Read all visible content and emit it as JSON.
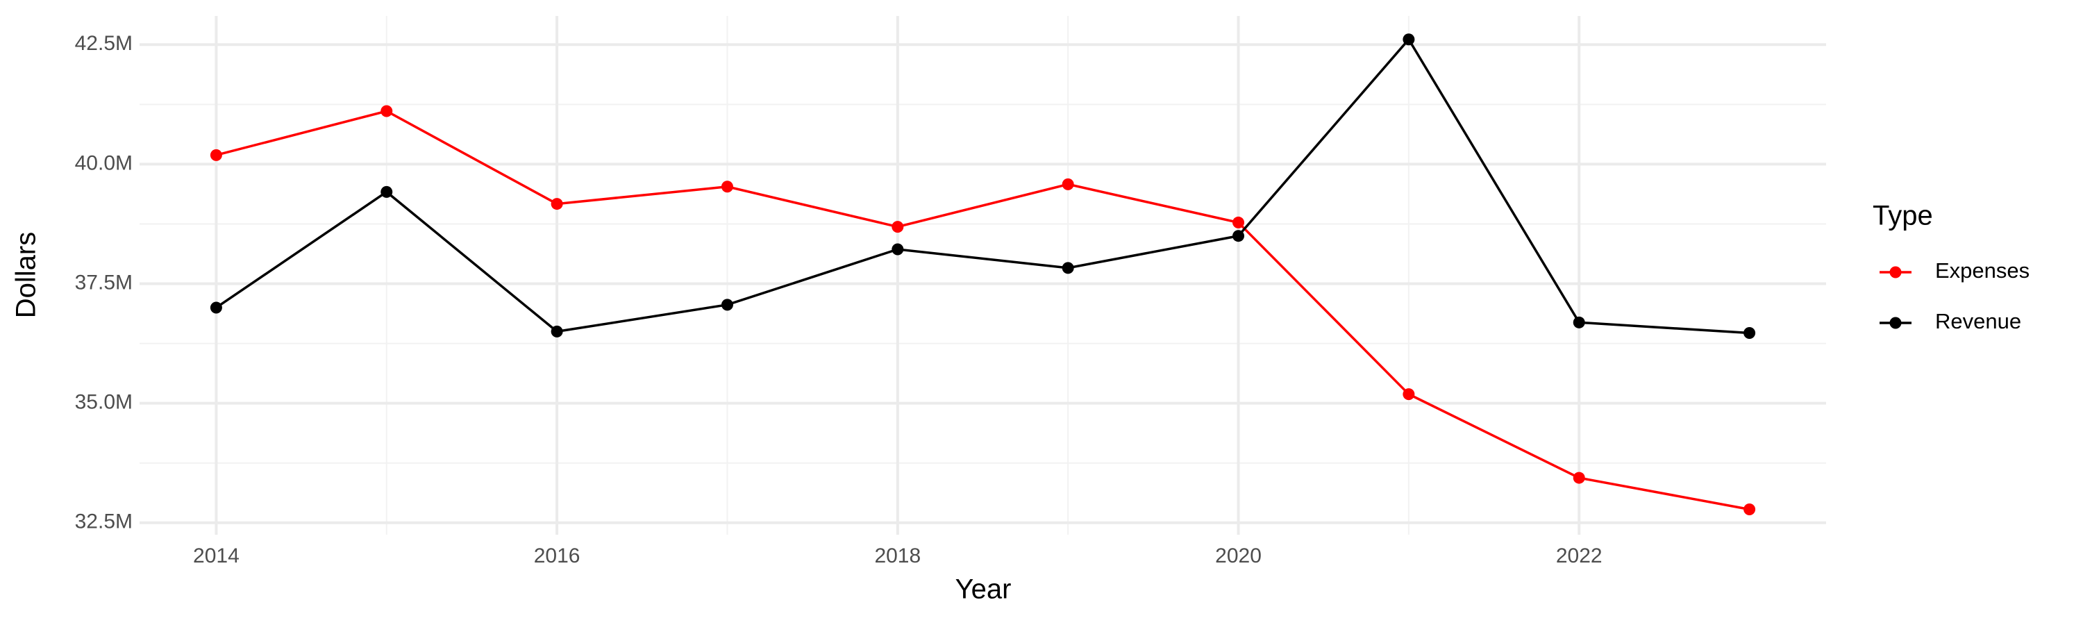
{
  "chart_data": {
    "type": "line",
    "x_label": "Year",
    "y_label": "Dollars",
    "x": [
      2014,
      2015,
      2016,
      2017,
      2018,
      2019,
      2020,
      2021,
      2022,
      2023
    ],
    "series": [
      {
        "name": "Expenses",
        "color": "#ff0000",
        "values": [
          40190000,
          41110000,
          39170000,
          39530000,
          38690000,
          39580000,
          38780000,
          35190000,
          33440000,
          32780000
        ]
      },
      {
        "name": "Revenue",
        "color": "#000000",
        "values": [
          37000000,
          39420000,
          36500000,
          37060000,
          38220000,
          37830000,
          38500000,
          42610000,
          36690000,
          36470000
        ]
      }
    ],
    "xlim": [
      2013.55,
      2023.45
    ],
    "xticks": [
      2014,
      2016,
      2018,
      2020,
      2022
    ],
    "ylim": [
      32250000,
      43100000
    ],
    "yticks": [
      {
        "value": 32500000,
        "label": "32.5M"
      },
      {
        "value": 35000000,
        "label": "35.0M"
      },
      {
        "value": 37500000,
        "label": "37.5M"
      },
      {
        "value": 40000000,
        "label": "40.0M"
      },
      {
        "value": 42500000,
        "label": "42.5M"
      }
    ],
    "grid": true,
    "legend_title": "Type",
    "legend_position": "right"
  }
}
